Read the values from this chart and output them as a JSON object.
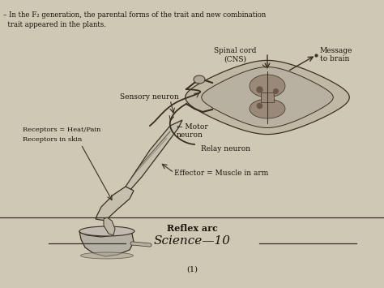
{
  "background_color": "#cfc8b5",
  "title_bold": "Reflex arc",
  "title_italic": "Science—10",
  "page_num": "(1)",
  "top_text_line1": "– In the F₂ generation, the parental forms of the trait and new combination",
  "top_text_line2": "  trait appeared in the plants.",
  "labels": {
    "spinal_cord": "Spinal cord\n(CNS)",
    "message": "Message\nto brain",
    "sensory": "Sensory neuron",
    "motor": "← Motor\nneuron",
    "relay": "Relay neuron",
    "receptors1": "Receptors = Heat/Pain",
    "receptors2": "Receptors in skin",
    "effector": "Effector = Muscle in arm"
  },
  "text_color": "#1a1208",
  "line_color": "#3a3020",
  "bg_fill": "#cac0aa",
  "spinal_outer": "#c0b8a5",
  "spinal_inner": "#9a8878",
  "spinal_dark": "#6a5848"
}
